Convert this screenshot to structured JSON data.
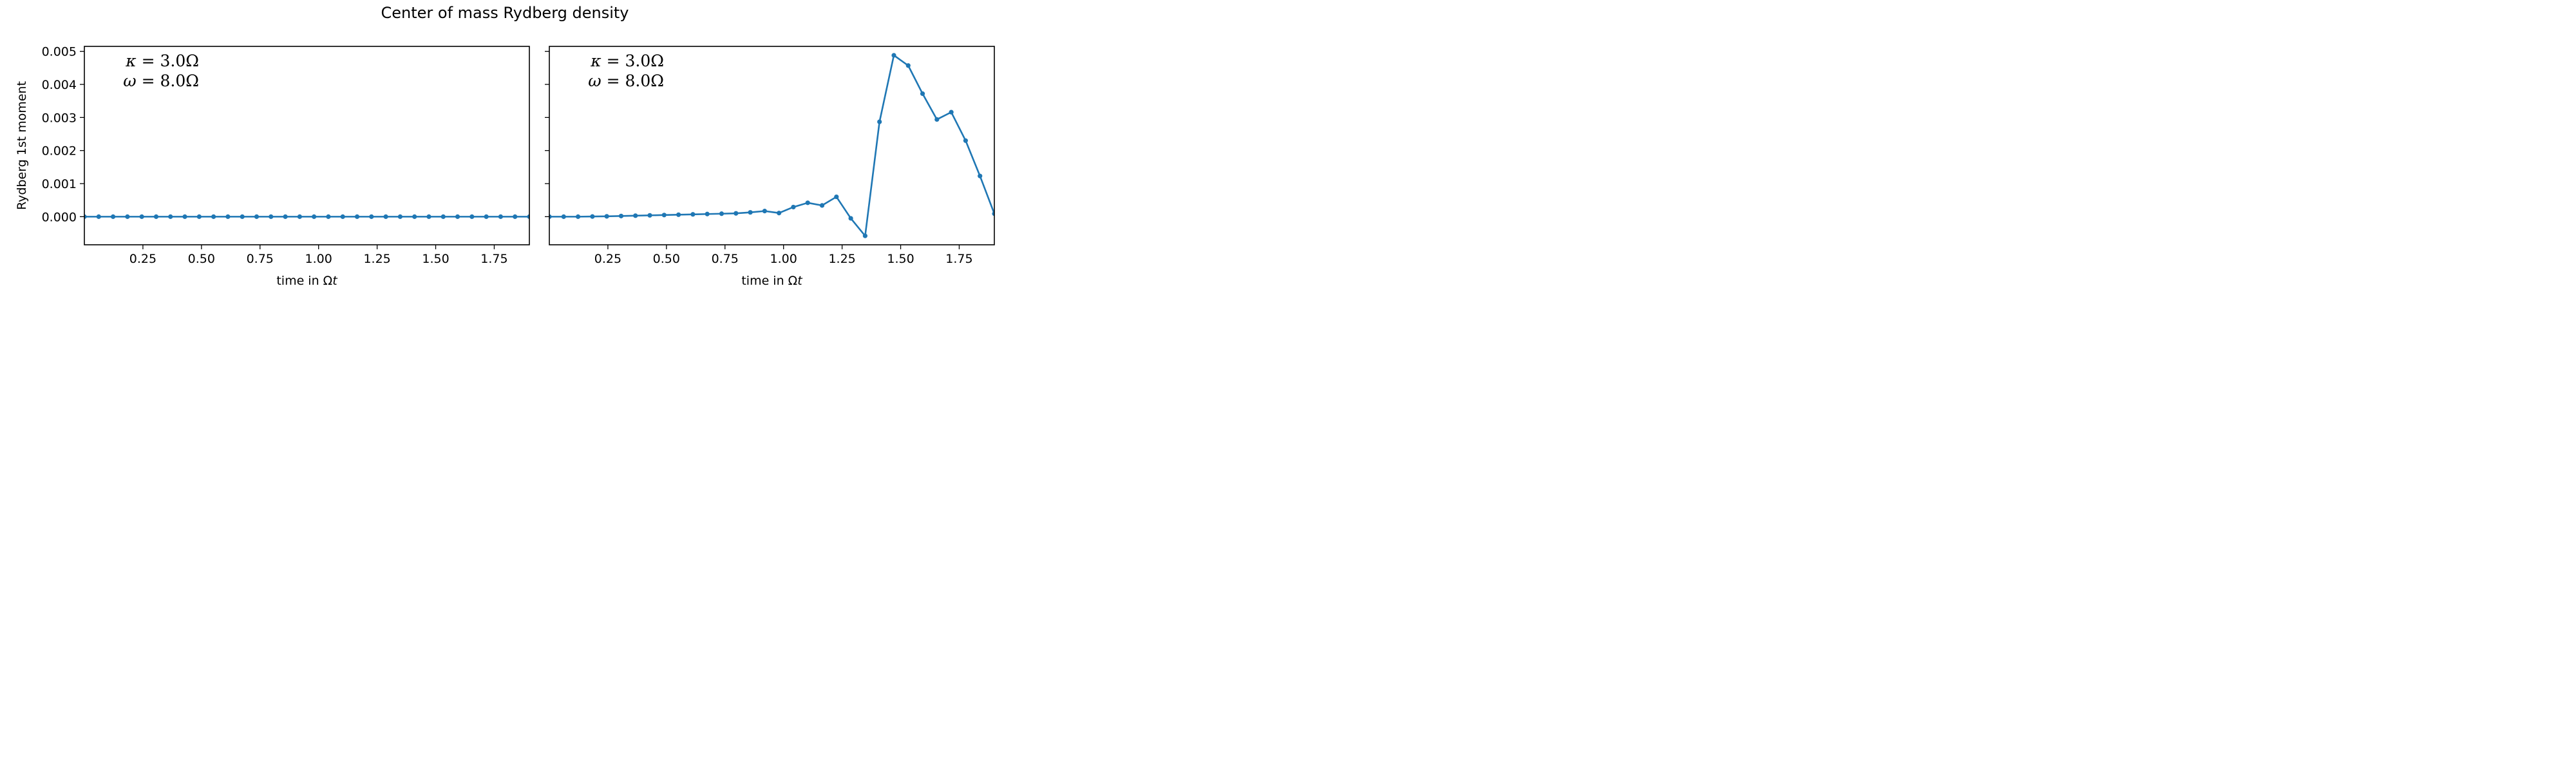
{
  "figure": {
    "title": "Center of mass Rydberg density",
    "ylabel": "Rydberg 1st moment"
  },
  "chart_data": [
    {
      "type": "line",
      "xlabel_prefix": "time in Ω",
      "xlabel_var": "t",
      "ylabel": "Rydberg 1st moment",
      "xlim": [
        0.0,
        1.9
      ],
      "ylim": [
        -0.00085,
        0.00515
      ],
      "xticks": [
        "0.25",
        "0.50",
        "0.75",
        "1.00",
        "1.25",
        "1.50",
        "1.75"
      ],
      "yticks": [
        "0.000",
        "0.001",
        "0.002",
        "0.003",
        "0.004",
        "0.005"
      ],
      "annotation": {
        "kappa_sym": "κ",
        "kappa_rest": " = 3.0Ω",
        "omega_sym": "ω",
        "omega_rest": " = 8.0Ω"
      },
      "color": "#1f77b4",
      "series": [
        {
          "x": [
            0.0,
            0.0613,
            0.1226,
            0.1839,
            0.2452,
            0.3065,
            0.3677,
            0.429,
            0.4903,
            0.5516,
            0.6129,
            0.6742,
            0.7355,
            0.7968,
            0.8581,
            0.9194,
            0.9806,
            1.0419,
            1.1032,
            1.1645,
            1.2258,
            1.2871,
            1.3484,
            1.4097,
            1.471,
            1.5323,
            1.5935,
            1.6548,
            1.7161,
            1.7774,
            1.8387,
            1.9
          ],
          "y": [
            0,
            0,
            0,
            0,
            0,
            0,
            0,
            0,
            0,
            0,
            0,
            0,
            0,
            0,
            0,
            0,
            0,
            0,
            0,
            0,
            0,
            0,
            0,
            0,
            0,
            0,
            0,
            0,
            0,
            0,
            0,
            0
          ]
        }
      ]
    },
    {
      "type": "line",
      "xlabel_prefix": "time in Ω",
      "xlabel_var": "t",
      "xlim": [
        0.0,
        1.9
      ],
      "ylim": [
        -0.00085,
        0.00515
      ],
      "xticks": [
        "0.25",
        "0.50",
        "0.75",
        "1.00",
        "1.25",
        "1.50",
        "1.75"
      ],
      "annotation": {
        "kappa_sym": "κ",
        "kappa_rest": " = 3.0Ω",
        "omega_sym": "ω",
        "omega_rest": " = 8.0Ω"
      },
      "color": "#1f77b4",
      "series": [
        {
          "x": [
            0.0,
            0.0613,
            0.1226,
            0.1839,
            0.2452,
            0.3065,
            0.3677,
            0.429,
            0.4903,
            0.5516,
            0.6129,
            0.6742,
            0.7355,
            0.7968,
            0.8581,
            0.9194,
            0.9806,
            1.0419,
            1.1032,
            1.1645,
            1.2258,
            1.2871,
            1.3484,
            1.4097,
            1.471,
            1.5323,
            1.5935,
            1.6548,
            1.7161,
            1.7774,
            1.8387,
            1.9
          ],
          "y": [
            0,
            0,
            0,
            5e-06,
            1e-05,
            2e-05,
            3e-05,
            4e-05,
            5e-05,
            6e-05,
            7e-05,
            8e-05,
            9e-05,
            0.0001,
            0.00013,
            0.00017,
            0.00011,
            0.00029,
            0.00042,
            0.00034,
            0.0006,
            -5e-05,
            -0.00058,
            0.00287,
            0.00488,
            0.00457,
            0.00372,
            0.00294,
            0.00316,
            0.0023,
            0.00123,
            9e-05
          ]
        }
      ]
    }
  ]
}
